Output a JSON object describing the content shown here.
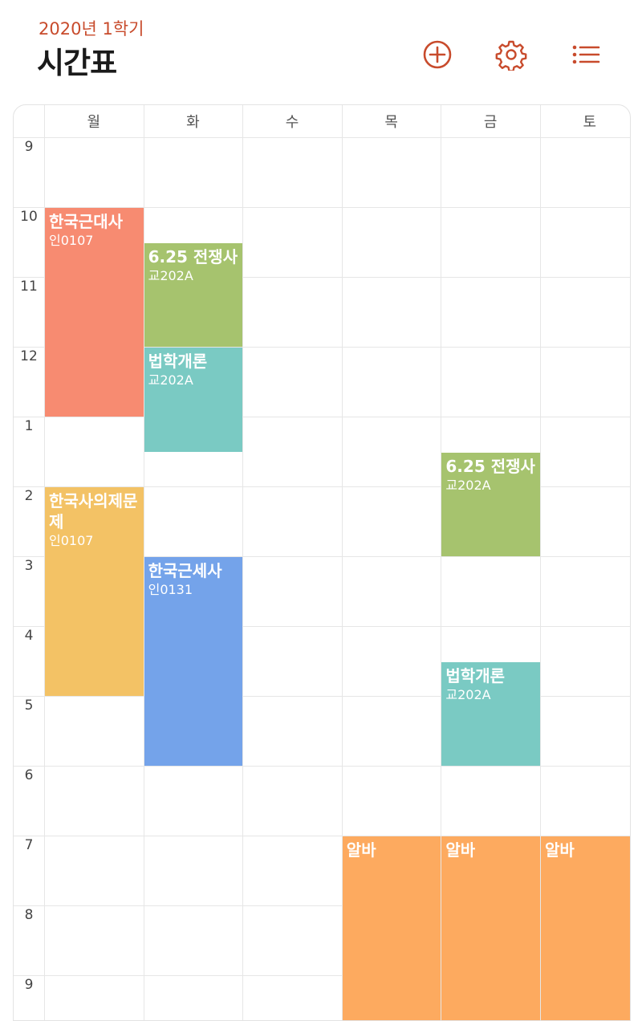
{
  "header": {
    "semester": "2020년 1학기",
    "title": "시간표",
    "accent_color": "#c84b2c",
    "buttons": [
      {
        "name": "add-button",
        "icon": "plus-circle-icon"
      },
      {
        "name": "settings-button",
        "icon": "gear-icon"
      },
      {
        "name": "list-button",
        "icon": "list-icon"
      }
    ]
  },
  "days": [
    "월",
    "화",
    "수",
    "목",
    "금",
    "토"
  ],
  "hours": [
    "9",
    "10",
    "11",
    "12",
    "1",
    "2",
    "3",
    "4",
    "5",
    "6",
    "7",
    "8",
    "9"
  ],
  "events": [
    {
      "name": "한국근대사",
      "room": "인0107",
      "day": "월",
      "start": "10:00",
      "end": "13:00",
      "color": "#f78b71"
    },
    {
      "name": "6.25 전쟁사",
      "room": "교202A",
      "day": "화",
      "start": "10:30",
      "end": "12:00",
      "color": "#a6c36e"
    },
    {
      "name": "법학개론",
      "room": "교202A",
      "day": "화",
      "start": "12:00",
      "end": "13:30",
      "color": "#7acac3"
    },
    {
      "name": "한국사의제문제",
      "room": "인0107",
      "day": "월",
      "start": "14:00",
      "end": "17:00",
      "color": "#f3c265"
    },
    {
      "name": "한국근세사",
      "room": "인0131",
      "day": "화",
      "start": "15:00",
      "end": "18:00",
      "color": "#74a3ea"
    },
    {
      "name": "6.25 전쟁사",
      "room": "교202A",
      "day": "금",
      "start": "13:30",
      "end": "15:00",
      "color": "#a6c36e"
    },
    {
      "name": "법학개론",
      "room": "교202A",
      "day": "금",
      "start": "16:30",
      "end": "18:00",
      "color": "#7acac3"
    },
    {
      "name": "알바",
      "room": "",
      "day": "목",
      "start": "19:00",
      "end": "22:00",
      "color": "#fdaa5f"
    },
    {
      "name": "알바",
      "room": "",
      "day": "금",
      "start": "19:00",
      "end": "22:00",
      "color": "#fdaa5f"
    },
    {
      "name": "알바",
      "room": "",
      "day": "토",
      "start": "19:00",
      "end": "22:00",
      "color": "#fdaa5f"
    }
  ]
}
